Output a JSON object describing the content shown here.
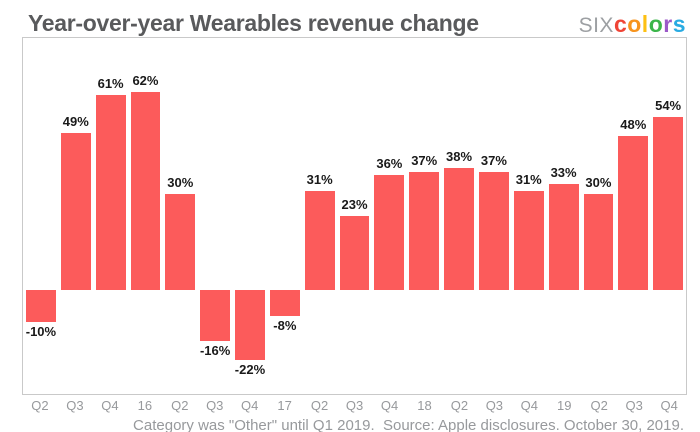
{
  "header": {
    "title": "Year-over-year Wearables revenue change"
  },
  "logo": {
    "prefix": "six",
    "prefix_color": "#9da0a3",
    "letters": [
      {
        "char": "c",
        "color": "#ef4436"
      },
      {
        "char": "o",
        "color": "#f7941e"
      },
      {
        "char": "l",
        "color": "#fdc013"
      },
      {
        "char": "o",
        "color": "#3bb54a"
      },
      {
        "char": "r",
        "color": "#9b59c8"
      },
      {
        "char": "s",
        "color": "#29abe2"
      }
    ]
  },
  "caption": "Category was \"Other\" until Q1 2019.  Source: Apple disclosures. October 30, 2019.",
  "colors": {
    "bar": "#fc5b5b",
    "title": "#595a5c",
    "axis_text": "#97999c",
    "border": "#c9c9c9",
    "value_label": "#1a1a1a"
  },
  "chart_data": {
    "type": "bar",
    "title": "Year-over-year Wearables revenue change",
    "categories": [
      "Q2",
      "Q3",
      "Q4",
      "16",
      "Q2",
      "Q3",
      "Q4",
      "17",
      "Q2",
      "Q3",
      "Q4",
      "18",
      "Q2",
      "Q3",
      "Q4",
      "19",
      "Q2",
      "Q3",
      "Q4"
    ],
    "values": [
      -10,
      49,
      61,
      62,
      30,
      -16,
      -22,
      -8,
      31,
      23,
      36,
      37,
      38,
      37,
      31,
      33,
      30,
      48,
      54
    ],
    "label_suffix": "%",
    "bar_color": "#fc5b5b",
    "xlabel": "",
    "ylabel": "",
    "ylim": [
      -32,
      79
    ],
    "baseline": 0,
    "grid": false,
    "legend": null,
    "value_labels_shown": true
  }
}
